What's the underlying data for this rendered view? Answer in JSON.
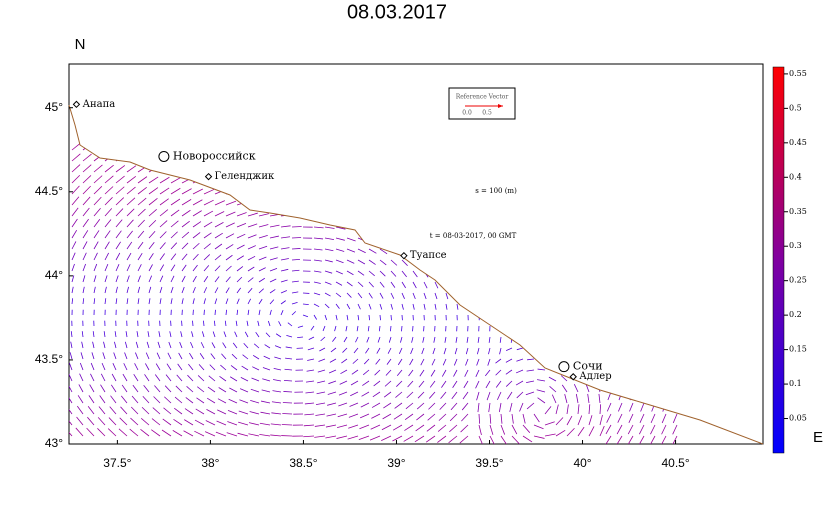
{
  "title": "08.03.2017",
  "north_label": "N",
  "east_label": "E",
  "map": {
    "xlim": [
      37.24,
      40.97
    ],
    "ylim": [
      43,
      45.26
    ],
    "xticks": [
      {
        "value": 37.5,
        "label": "37.5°"
      },
      {
        "value": 38,
        "label": "38°"
      },
      {
        "value": 38.5,
        "label": "38.5°"
      },
      {
        "value": 39,
        "label": "39°"
      },
      {
        "value": 39.5,
        "label": "39.5°"
      },
      {
        "value": 40,
        "label": "40°"
      },
      {
        "value": 40.5,
        "label": "40.5°"
      }
    ],
    "yticks": [
      {
        "value": 43,
        "label": "43°"
      },
      {
        "value": 43.5,
        "label": "43.5°"
      },
      {
        "value": 44,
        "label": "44°"
      },
      {
        "value": 44.5,
        "label": "44.5°"
      },
      {
        "value": 45,
        "label": "45°"
      }
    ],
    "cities": [
      {
        "name": "Анапа",
        "lon": 37.28,
        "lat": 45.02,
        "major": false
      },
      {
        "name": "Новороссийск",
        "lon": 37.75,
        "lat": 44.71,
        "major": true
      },
      {
        "name": "Геленджик",
        "lon": 37.99,
        "lat": 44.59,
        "major": false
      },
      {
        "name": "Туапсе",
        "lon": 39.04,
        "lat": 44.12,
        "major": false
      },
      {
        "name": "Сочи",
        "lon": 39.9,
        "lat": 43.46,
        "major": true
      },
      {
        "name": "Адлер",
        "lon": 39.95,
        "lat": 43.4,
        "major": false
      }
    ],
    "reference_vector": {
      "title": "Reference Vector",
      "start": "0.0",
      "end": "0.5"
    },
    "depth_note": "s = 100 (m)",
    "time_note": "t = 08-03-2017, 00 GMT"
  },
  "colorbar": {
    "ylim": [
      0,
      0.56
    ],
    "ticks": [
      0.05,
      0.1,
      0.15,
      0.2,
      0.25,
      0.3,
      0.35,
      0.4,
      0.45,
      0.5,
      0.55
    ]
  }
}
